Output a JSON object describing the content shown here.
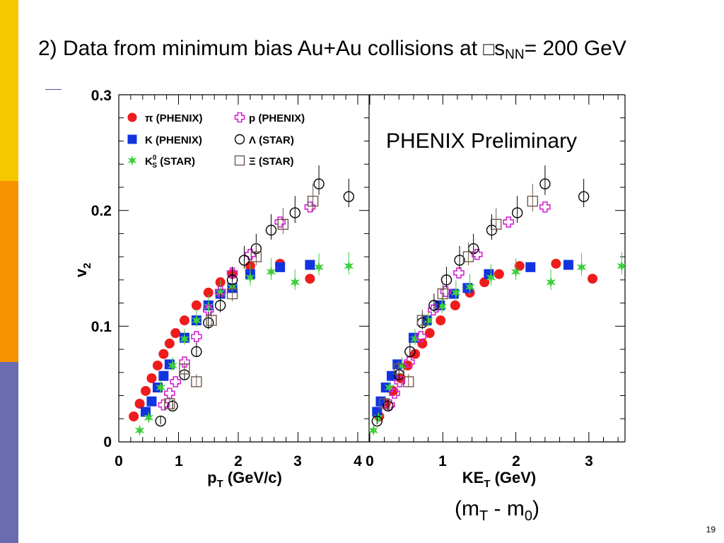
{
  "slide": {
    "title_main": "2) Data from minimum bias Au+Au collisions at ",
    "title_symbol": "□",
    "title_s": "s",
    "title_sub": "NN",
    "title_tail": "= 200 GeV",
    "page_number": "19",
    "accent_colors": [
      "#f7c800",
      "#f79200",
      "#6b6bb0"
    ]
  },
  "chart_data": [
    {
      "type": "scatter",
      "title": "",
      "xlabel_main": "p",
      "xlabel_sub": "T",
      "xlabel_tail": " (GeV/c)",
      "ylabel_main": "v",
      "ylabel_sub": "2",
      "xlim": [
        0,
        4
      ],
      "ylim": [
        0,
        0.3
      ],
      "xticks": [
        "0",
        "1",
        "2",
        "3",
        "4"
      ],
      "yticks": [
        "0",
        "0.1",
        "0.2",
        "0.3"
      ],
      "legend": [
        {
          "key": "pi",
          "label": "π (PHENIX)"
        },
        {
          "key": "k",
          "label": "K (PHENIX)"
        },
        {
          "key": "k0",
          "label_main": "K",
          "label_sup": "0",
          "label_sub": "S",
          "label_tail": " (STAR)"
        },
        {
          "key": "p",
          "label": "p (PHENIX)"
        },
        {
          "key": "lambda",
          "label": "Λ (STAR)"
        },
        {
          "key": "xi",
          "label": "Ξ (STAR)"
        }
      ],
      "series": [
        {
          "key": "pi",
          "name": "π (PHENIX)",
          "points": [
            [
              0.25,
              0.022
            ],
            [
              0.35,
              0.033
            ],
            [
              0.45,
              0.044
            ],
            [
              0.55,
              0.055
            ],
            [
              0.65,
              0.066
            ],
            [
              0.75,
              0.076
            ],
            [
              0.85,
              0.085
            ],
            [
              0.95,
              0.094
            ],
            [
              1.1,
              0.105
            ],
            [
              1.3,
              0.118
            ],
            [
              1.5,
              0.129
            ],
            [
              1.7,
              0.138
            ],
            [
              1.9,
              0.145
            ],
            [
              2.2,
              0.152
            ],
            [
              2.7,
              0.154
            ],
            [
              3.2,
              0.141
            ]
          ]
        },
        {
          "key": "k",
          "name": "K (PHENIX)",
          "points": [
            [
              0.45,
              0.026
            ],
            [
              0.55,
              0.035
            ],
            [
              0.65,
              0.047
            ],
            [
              0.75,
              0.057
            ],
            [
              0.85,
              0.067
            ],
            [
              1.1,
              0.09
            ],
            [
              1.3,
              0.105
            ],
            [
              1.5,
              0.118
            ],
            [
              1.7,
              0.128
            ],
            [
              1.9,
              0.133
            ],
            [
              2.2,
              0.145
            ],
            [
              2.7,
              0.151
            ],
            [
              3.2,
              0.153
            ]
          ]
        },
        {
          "key": "k0",
          "name": "K0S (STAR)",
          "points": [
            [
              0.35,
              0.01
            ],
            [
              0.5,
              0.021
            ],
            [
              0.7,
              0.047
            ],
            [
              0.9,
              0.066
            ],
            [
              1.1,
              0.089
            ],
            [
              1.3,
              0.105
            ],
            [
              1.5,
              0.117
            ],
            [
              1.7,
              0.129
            ],
            [
              1.9,
              0.134
            ],
            [
              2.2,
              0.142
            ],
            [
              2.55,
              0.147
            ],
            [
              2.95,
              0.138
            ],
            [
              3.35,
              0.151
            ],
            [
              3.85,
              0.152
            ]
          ]
        },
        {
          "key": "p",
          "name": "p (PHENIX)",
          "points": [
            [
              0.75,
              0.032
            ],
            [
              0.85,
              0.042
            ],
            [
              0.95,
              0.052
            ],
            [
              1.1,
              0.069
            ],
            [
              1.3,
              0.091
            ],
            [
              1.5,
              0.114
            ],
            [
              1.7,
              0.13
            ],
            [
              1.9,
              0.146
            ],
            [
              2.2,
              0.162
            ],
            [
              2.7,
              0.19
            ],
            [
              3.2,
              0.203
            ]
          ]
        },
        {
          "key": "lambda",
          "name": "Λ (STAR)",
          "points": [
            [
              0.7,
              0.018
            ],
            [
              0.9,
              0.031
            ],
            [
              1.1,
              0.058
            ],
            [
              1.3,
              0.078
            ],
            [
              1.5,
              0.103
            ],
            [
              1.7,
              0.118
            ],
            [
              1.9,
              0.14
            ],
            [
              2.1,
              0.157
            ],
            [
              2.3,
              0.167
            ],
            [
              2.55,
              0.183
            ],
            [
              2.95,
              0.198
            ],
            [
              3.35,
              0.223
            ],
            [
              3.85,
              0.212
            ]
          ]
        },
        {
          "key": "xi",
          "name": "Ξ (STAR)",
          "points": [
            [
              0.85,
              0.033
            ],
            [
              1.1,
              0.063
            ],
            [
              1.3,
              0.052
            ],
            [
              1.55,
              0.105
            ],
            [
              1.9,
              0.128
            ],
            [
              2.3,
              0.16
            ],
            [
              2.75,
              0.188
            ],
            [
              3.25,
              0.208
            ]
          ]
        }
      ]
    },
    {
      "type": "scatter",
      "title": "",
      "xlabel_main": "KE",
      "xlabel_sub": "T",
      "xlabel_tail": " (GeV)",
      "xlim": [
        0,
        3.5
      ],
      "ylim": [
        0,
        0.3
      ],
      "xticks": [
        "0",
        "1",
        "2",
        "3"
      ],
      "annotation": "PHENIX Preliminary",
      "note_main": "(m",
      "note_sub1": "T",
      "note_mid": " - m",
      "note_sub2": "0",
      "note_tail": ")",
      "series": [
        {
          "key": "pi",
          "name": "π (PHENIX)",
          "points": [
            [
              0.13,
              0.022
            ],
            [
              0.22,
              0.033
            ],
            [
              0.32,
              0.044
            ],
            [
              0.42,
              0.055
            ],
            [
              0.52,
              0.066
            ],
            [
              0.62,
              0.076
            ],
            [
              0.72,
              0.085
            ],
            [
              0.82,
              0.094
            ],
            [
              0.97,
              0.105
            ],
            [
              1.17,
              0.118
            ],
            [
              1.37,
              0.129
            ],
            [
              1.57,
              0.138
            ],
            [
              1.77,
              0.145
            ],
            [
              2.05,
              0.152
            ],
            [
              2.55,
              0.154
            ],
            [
              3.05,
              0.141
            ]
          ]
        },
        {
          "key": "k",
          "name": "K (PHENIX)",
          "points": [
            [
              0.1,
              0.026
            ],
            [
              0.15,
              0.035
            ],
            [
              0.22,
              0.047
            ],
            [
              0.3,
              0.057
            ],
            [
              0.38,
              0.067
            ],
            [
              0.6,
              0.09
            ],
            [
              0.78,
              0.105
            ],
            [
              0.96,
              0.118
            ],
            [
              1.15,
              0.128
            ],
            [
              1.34,
              0.133
            ],
            [
              1.63,
              0.145
            ],
            [
              2.2,
              0.151
            ],
            [
              2.72,
              0.153
            ]
          ]
        },
        {
          "key": "k0",
          "name": "K0S (STAR)",
          "points": [
            [
              0.05,
              0.01
            ],
            [
              0.12,
              0.021
            ],
            [
              0.27,
              0.047
            ],
            [
              0.44,
              0.066
            ],
            [
              0.62,
              0.089
            ],
            [
              0.8,
              0.105
            ],
            [
              0.99,
              0.117
            ],
            [
              1.18,
              0.129
            ],
            [
              1.37,
              0.134
            ],
            [
              1.66,
              0.142
            ],
            [
              2.0,
              0.147
            ],
            [
              2.48,
              0.138
            ],
            [
              2.9,
              0.151
            ],
            [
              3.45,
              0.152
            ]
          ]
        },
        {
          "key": "p",
          "name": "p (PHENIX)",
          "points": [
            [
              0.27,
              0.032
            ],
            [
              0.34,
              0.042
            ],
            [
              0.41,
              0.052
            ],
            [
              0.54,
              0.069
            ],
            [
              0.7,
              0.091
            ],
            [
              0.87,
              0.114
            ],
            [
              1.04,
              0.13
            ],
            [
              1.22,
              0.146
            ],
            [
              1.47,
              0.162
            ],
            [
              1.9,
              0.19
            ],
            [
              2.4,
              0.203
            ]
          ]
        },
        {
          "key": "lambda",
          "name": "Λ (STAR)",
          "points": [
            [
              0.1,
              0.018
            ],
            [
              0.25,
              0.031
            ],
            [
              0.4,
              0.058
            ],
            [
              0.55,
              0.078
            ],
            [
              0.72,
              0.103
            ],
            [
              0.88,
              0.118
            ],
            [
              1.05,
              0.14
            ],
            [
              1.23,
              0.157
            ],
            [
              1.42,
              0.167
            ],
            [
              1.67,
              0.183
            ],
            [
              2.02,
              0.198
            ],
            [
              2.4,
              0.223
            ],
            [
              2.93,
              0.212
            ]
          ]
        },
        {
          "key": "xi",
          "name": "Ξ (STAR)",
          "points": [
            [
              0.2,
              0.033
            ],
            [
              0.4,
              0.063
            ],
            [
              0.53,
              0.052
            ],
            [
              0.72,
              0.105
            ],
            [
              1.0,
              0.128
            ],
            [
              1.35,
              0.16
            ],
            [
              1.73,
              0.188
            ],
            [
              2.23,
              0.208
            ]
          ]
        }
      ]
    }
  ]
}
